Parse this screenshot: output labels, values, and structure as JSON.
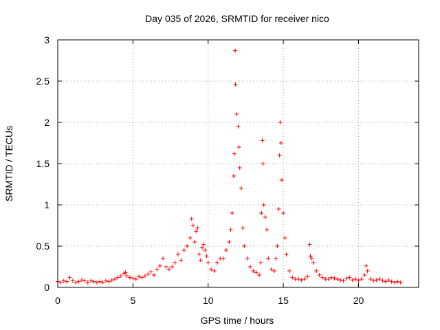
{
  "chart_data": {
    "type": "scatter",
    "title": "Day 035 of 2026, SRMTID for receiver nico",
    "xlabel": "GPS time / hours",
    "ylabel": "SRMTID / TECUs",
    "xlim": [
      0,
      24
    ],
    "ylim": [
      0,
      3
    ],
    "xticks": [
      0,
      5,
      10,
      15,
      20
    ],
    "yticks": [
      0,
      0.5,
      1,
      1.5,
      2,
      2.5,
      3
    ],
    "ytick_labels": [
      "0",
      "0.5",
      "1",
      "1.5",
      "2",
      "2.5",
      "3"
    ],
    "grid": true,
    "marker": "+",
    "marker_color": "#ff0000",
    "series": [
      {
        "name": "SRMTID",
        "points": [
          [
            0.0,
            0.07
          ],
          [
            0.2,
            0.06
          ],
          [
            0.4,
            0.08
          ],
          [
            0.6,
            0.07
          ],
          [
            0.8,
            0.12
          ],
          [
            1.0,
            0.08
          ],
          [
            1.2,
            0.06
          ],
          [
            1.4,
            0.07
          ],
          [
            1.6,
            0.09
          ],
          [
            1.8,
            0.08
          ],
          [
            2.0,
            0.06
          ],
          [
            2.2,
            0.08
          ],
          [
            2.4,
            0.07
          ],
          [
            2.6,
            0.06
          ],
          [
            2.8,
            0.07
          ],
          [
            3.0,
            0.06
          ],
          [
            3.2,
            0.08
          ],
          [
            3.4,
            0.07
          ],
          [
            3.6,
            0.09
          ],
          [
            3.8,
            0.1
          ],
          [
            4.0,
            0.12
          ],
          [
            4.2,
            0.14
          ],
          [
            4.4,
            0.17
          ],
          [
            4.5,
            0.18
          ],
          [
            4.6,
            0.14
          ],
          [
            4.8,
            0.12
          ],
          [
            5.0,
            0.11
          ],
          [
            5.2,
            0.1
          ],
          [
            5.4,
            0.13
          ],
          [
            5.6,
            0.12
          ],
          [
            5.8,
            0.14
          ],
          [
            6.0,
            0.16
          ],
          [
            6.2,
            0.19
          ],
          [
            6.4,
            0.15
          ],
          [
            6.6,
            0.22
          ],
          [
            6.8,
            0.26
          ],
          [
            7.0,
            0.35
          ],
          [
            7.2,
            0.25
          ],
          [
            7.4,
            0.22
          ],
          [
            7.6,
            0.25
          ],
          [
            7.8,
            0.3
          ],
          [
            8.0,
            0.4
          ],
          [
            8.2,
            0.33
          ],
          [
            8.4,
            0.45
          ],
          [
            8.6,
            0.5
          ],
          [
            8.8,
            0.6
          ],
          [
            8.9,
            0.83
          ],
          [
            9.0,
            0.75
          ],
          [
            9.1,
            0.55
          ],
          [
            9.2,
            0.68
          ],
          [
            9.3,
            0.72
          ],
          [
            9.4,
            0.4
          ],
          [
            9.5,
            0.33
          ],
          [
            9.6,
            0.48
          ],
          [
            9.7,
            0.52
          ],
          [
            9.8,
            0.45
          ],
          [
            9.9,
            0.38
          ],
          [
            10.0,
            0.3
          ],
          [
            10.2,
            0.22
          ],
          [
            10.4,
            0.2
          ],
          [
            10.6,
            0.3
          ],
          [
            10.8,
            0.35
          ],
          [
            11.0,
            0.35
          ],
          [
            11.2,
            0.45
          ],
          [
            11.4,
            0.55
          ],
          [
            11.5,
            0.7
          ],
          [
            11.6,
            0.9
          ],
          [
            11.7,
            1.35
          ],
          [
            11.75,
            1.62
          ],
          [
            11.8,
            2.87
          ],
          [
            11.82,
            2.46
          ],
          [
            11.9,
            2.1
          ],
          [
            12.0,
            1.95
          ],
          [
            12.05,
            1.7
          ],
          [
            12.1,
            1.45
          ],
          [
            12.2,
            1.2
          ],
          [
            12.3,
            0.72
          ],
          [
            12.4,
            0.5
          ],
          [
            12.6,
            0.35
          ],
          [
            12.8,
            0.25
          ],
          [
            13.0,
            0.2
          ],
          [
            13.2,
            0.18
          ],
          [
            13.4,
            0.15
          ],
          [
            13.5,
            0.3
          ],
          [
            13.55,
            0.9
          ],
          [
            13.6,
            1.78
          ],
          [
            13.65,
            1.5
          ],
          [
            13.7,
            1.0
          ],
          [
            13.8,
            0.85
          ],
          [
            13.9,
            0.7
          ],
          [
            14.0,
            0.35
          ],
          [
            14.2,
            0.22
          ],
          [
            14.4,
            0.2
          ],
          [
            14.5,
            0.35
          ],
          [
            14.6,
            0.5
          ],
          [
            14.7,
            0.95
          ],
          [
            14.75,
            1.6
          ],
          [
            14.8,
            2.0
          ],
          [
            14.85,
            1.75
          ],
          [
            14.9,
            1.3
          ],
          [
            15.0,
            0.9
          ],
          [
            15.1,
            0.6
          ],
          [
            15.2,
            0.4
          ],
          [
            15.4,
            0.2
          ],
          [
            15.6,
            0.12
          ],
          [
            15.8,
            0.1
          ],
          [
            16.0,
            0.1
          ],
          [
            16.2,
            0.09
          ],
          [
            16.4,
            0.1
          ],
          [
            16.6,
            0.13
          ],
          [
            16.75,
            0.52
          ],
          [
            16.8,
            0.38
          ],
          [
            16.9,
            0.35
          ],
          [
            17.0,
            0.3
          ],
          [
            17.2,
            0.2
          ],
          [
            17.4,
            0.15
          ],
          [
            17.6,
            0.12
          ],
          [
            17.8,
            0.1
          ],
          [
            18.0,
            0.1
          ],
          [
            18.2,
            0.12
          ],
          [
            18.4,
            0.11
          ],
          [
            18.6,
            0.1
          ],
          [
            18.8,
            0.09
          ],
          [
            19.0,
            0.08
          ],
          [
            19.2,
            0.11
          ],
          [
            19.4,
            0.12
          ],
          [
            19.6,
            0.09
          ],
          [
            19.8,
            0.1
          ],
          [
            20.0,
            0.08
          ],
          [
            20.2,
            0.1
          ],
          [
            20.4,
            0.15
          ],
          [
            20.5,
            0.26
          ],
          [
            20.6,
            0.2
          ],
          [
            20.8,
            0.1
          ],
          [
            21.0,
            0.08
          ],
          [
            21.2,
            0.09
          ],
          [
            21.4,
            0.1
          ],
          [
            21.6,
            0.08
          ],
          [
            21.8,
            0.07
          ],
          [
            22.0,
            0.09
          ],
          [
            22.2,
            0.07
          ],
          [
            22.4,
            0.06
          ],
          [
            22.6,
            0.07
          ],
          [
            22.8,
            0.06
          ]
        ]
      }
    ]
  }
}
